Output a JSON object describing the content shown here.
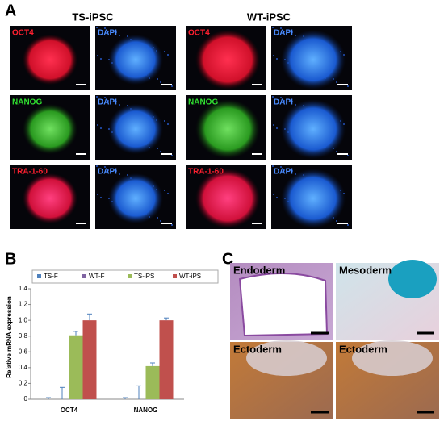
{
  "panel_labels": [
    "A",
    "B",
    "C"
  ],
  "panel_a": {
    "groups": [
      {
        "title": "TS-iPSC",
        "tiles": [
          [
            "OCT4",
            "DAPI"
          ],
          [
            "NANOG",
            "DAPI"
          ],
          [
            "TRA-1-60",
            "DAPI"
          ]
        ]
      },
      {
        "title": "WT-iPSC",
        "tiles": [
          [
            "OCT4",
            "DAPI"
          ],
          [
            "NANOG",
            "DAPI"
          ],
          [
            "TRA-1-60",
            "DAPI"
          ]
        ]
      }
    ]
  },
  "chart_data": {
    "type": "bar",
    "y_label": "Relative mRNA expression",
    "categories": [
      "OCT4",
      "NANOG"
    ],
    "series": [
      {
        "name": "TS-F",
        "color": "#4f81bd",
        "values": [
          0,
          0
        ],
        "errors": [
          0.02,
          0.02
        ]
      },
      {
        "name": "WT-F",
        "color": "#8064a2",
        "values": [
          0,
          0
        ],
        "errors": [
          0.15,
          0.17
        ]
      },
      {
        "name": "TS-iPS",
        "color": "#9bbb59",
        "values": [
          0.81,
          0.42
        ],
        "errors": [
          0.05,
          0.04
        ]
      },
      {
        "name": "WT-iPS",
        "color": "#c0504d",
        "values": [
          1,
          1
        ],
        "errors": [
          0.08,
          0.03
        ]
      }
    ],
    "ylim": [
      0,
      1.4
    ],
    "yticks": [
      0,
      0.2,
      0.4,
      0.6,
      0.8,
      {
        "value": 1,
        "label": "1.0"
      },
      1.2,
      1.4
    ],
    "legend": "top"
  },
  "panel_c": {
    "tiles": [
      "Endoderm",
      "Mesoderm",
      "Ectoderm",
      "Ectoderm"
    ]
  }
}
